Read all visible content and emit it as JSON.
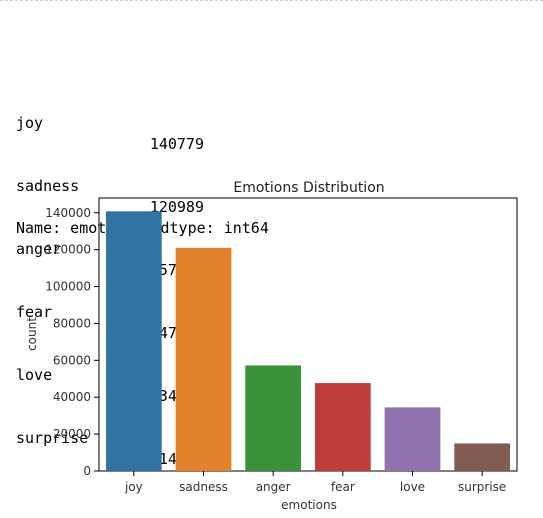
{
  "output": {
    "counts": [
      {
        "name": "joy",
        "value": "140779"
      },
      {
        "name": "sadness",
        "value": "120989"
      },
      {
        "name": "anger",
        "value": "57235"
      },
      {
        "name": "fear",
        "value": "47664"
      },
      {
        "name": "love",
        "value": "34497"
      },
      {
        "name": "surprise",
        "value": "14959"
      }
    ],
    "footer": "Name: emotions, dtype: int64"
  },
  "chart_data": {
    "type": "bar",
    "title": "Emotions Distribution",
    "xlabel": "emotions",
    "ylabel": "count",
    "categories": [
      "joy",
      "sadness",
      "anger",
      "fear",
      "love",
      "surprise"
    ],
    "values": [
      140779,
      120989,
      57235,
      47664,
      34497,
      14959
    ],
    "colors": [
      "#3274a1",
      "#e1812c",
      "#3a923a",
      "#c03d3e",
      "#9372b2",
      "#845b53"
    ],
    "ylim": [
      0,
      148000
    ],
    "yticks": [
      0,
      20000,
      40000,
      60000,
      80000,
      100000,
      120000,
      140000
    ],
    "ytick_labels": [
      "0",
      "20000",
      "40000",
      "60000",
      "80000",
      "100000",
      "120000",
      "140000"
    ],
    "grid": false,
    "legend": "none"
  }
}
